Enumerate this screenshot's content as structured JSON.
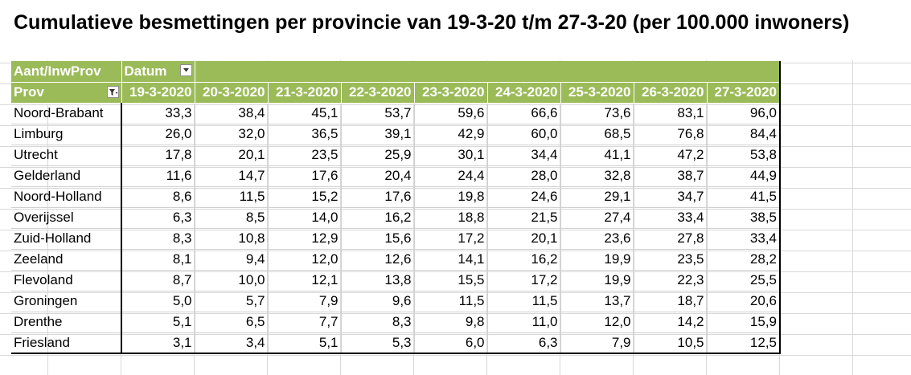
{
  "title": "Cumulatieve besmettingen per provincie van 19-3-20 t/m 27-3-20 (per 100.000 inwoners)",
  "pivot": {
    "values_header": "Aant/InwProv",
    "column_field": "Datum",
    "row_field": "Prov",
    "dates": [
      "19-3-2020",
      "20-3-2020",
      "21-3-2020",
      "22-3-2020",
      "23-3-2020",
      "24-3-2020",
      "25-3-2020",
      "26-3-2020",
      "27-3-2020"
    ],
    "rows": [
      {
        "prov": "Noord-Brabant",
        "values": [
          "33,3",
          "38,4",
          "45,1",
          "53,7",
          "59,6",
          "66,6",
          "73,6",
          "83,1",
          "96,0"
        ]
      },
      {
        "prov": "Limburg",
        "values": [
          "26,0",
          "32,0",
          "36,5",
          "39,1",
          "42,9",
          "60,0",
          "68,5",
          "76,8",
          "84,4"
        ]
      },
      {
        "prov": "Utrecht",
        "values": [
          "17,8",
          "20,1",
          "23,5",
          "25,9",
          "30,1",
          "34,4",
          "41,1",
          "47,2",
          "53,8"
        ]
      },
      {
        "prov": "Gelderland",
        "values": [
          "11,6",
          "14,7",
          "17,6",
          "20,4",
          "24,4",
          "28,0",
          "32,8",
          "38,7",
          "44,9"
        ]
      },
      {
        "prov": "Noord-Holland",
        "values": [
          "8,6",
          "11,5",
          "15,2",
          "17,6",
          "19,8",
          "24,6",
          "29,1",
          "34,7",
          "41,5"
        ]
      },
      {
        "prov": "Overijssel",
        "values": [
          "6,3",
          "8,5",
          "14,0",
          "16,2",
          "18,8",
          "21,5",
          "27,4",
          "33,4",
          "38,5"
        ]
      },
      {
        "prov": "Zuid-Holland",
        "values": [
          "8,3",
          "10,8",
          "12,9",
          "15,6",
          "17,2",
          "20,1",
          "23,6",
          "27,8",
          "33,4"
        ]
      },
      {
        "prov": "Zeeland",
        "values": [
          "8,1",
          "9,4",
          "12,0",
          "12,6",
          "14,1",
          "16,2",
          "19,9",
          "23,5",
          "28,2"
        ]
      },
      {
        "prov": "Flevoland",
        "values": [
          "8,7",
          "10,0",
          "12,1",
          "13,8",
          "15,5",
          "17,2",
          "19,9",
          "22,3",
          "25,5"
        ]
      },
      {
        "prov": "Groningen",
        "values": [
          "5,0",
          "5,7",
          "7,9",
          "9,6",
          "11,5",
          "11,5",
          "13,7",
          "18,7",
          "20,6"
        ]
      },
      {
        "prov": "Drenthe",
        "values": [
          "5,1",
          "6,5",
          "7,7",
          "8,3",
          "9,8",
          "11,0",
          "12,0",
          "14,2",
          "15,9"
        ]
      },
      {
        "prov": "Friesland",
        "values": [
          "3,1",
          "3,4",
          "5,1",
          "5,3",
          "6,0",
          "6,3",
          "7,9",
          "10,5",
          "12,5"
        ]
      }
    ]
  },
  "colors": {
    "header_bg": "#9bbb59",
    "header_text": "#ffffff"
  },
  "icons": {
    "column_filter": "dropdown-arrow-icon",
    "row_filter": "filter-funnel-icon"
  }
}
